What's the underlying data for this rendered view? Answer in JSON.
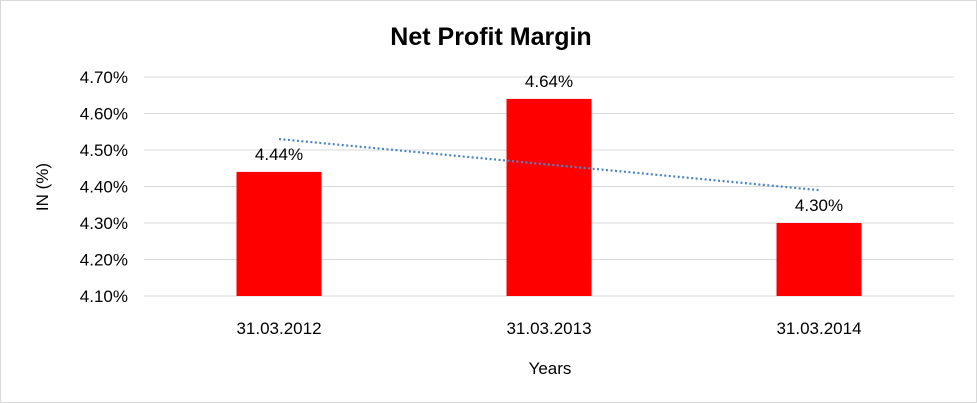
{
  "chart_data": {
    "type": "bar",
    "title": "Net Profit Margin",
    "xlabel": "Years",
    "ylabel": "IN (%)",
    "categories": [
      "31.03.2012",
      "31.03.2013",
      "31.03.2014"
    ],
    "values": [
      4.44,
      4.64,
      4.3
    ],
    "data_labels": [
      "4.44%",
      "4.64%",
      "4.30%"
    ],
    "ylim": [
      4.1,
      4.7
    ],
    "y_ticks": [
      4.1,
      4.2,
      4.3,
      4.4,
      4.5,
      4.6,
      4.7
    ],
    "y_tick_labels": [
      "4.10%",
      "4.20%",
      "4.30%",
      "4.40%",
      "4.50%",
      "4.60%",
      "4.70%"
    ],
    "grid": true,
    "legend": "none",
    "trendline": {
      "type": "linear",
      "style": "dotted",
      "color": "#4a86c5"
    },
    "colors": {
      "bar": "#ff0000",
      "grid": "#d9d9d9",
      "axis": "#d9d9d9"
    }
  }
}
